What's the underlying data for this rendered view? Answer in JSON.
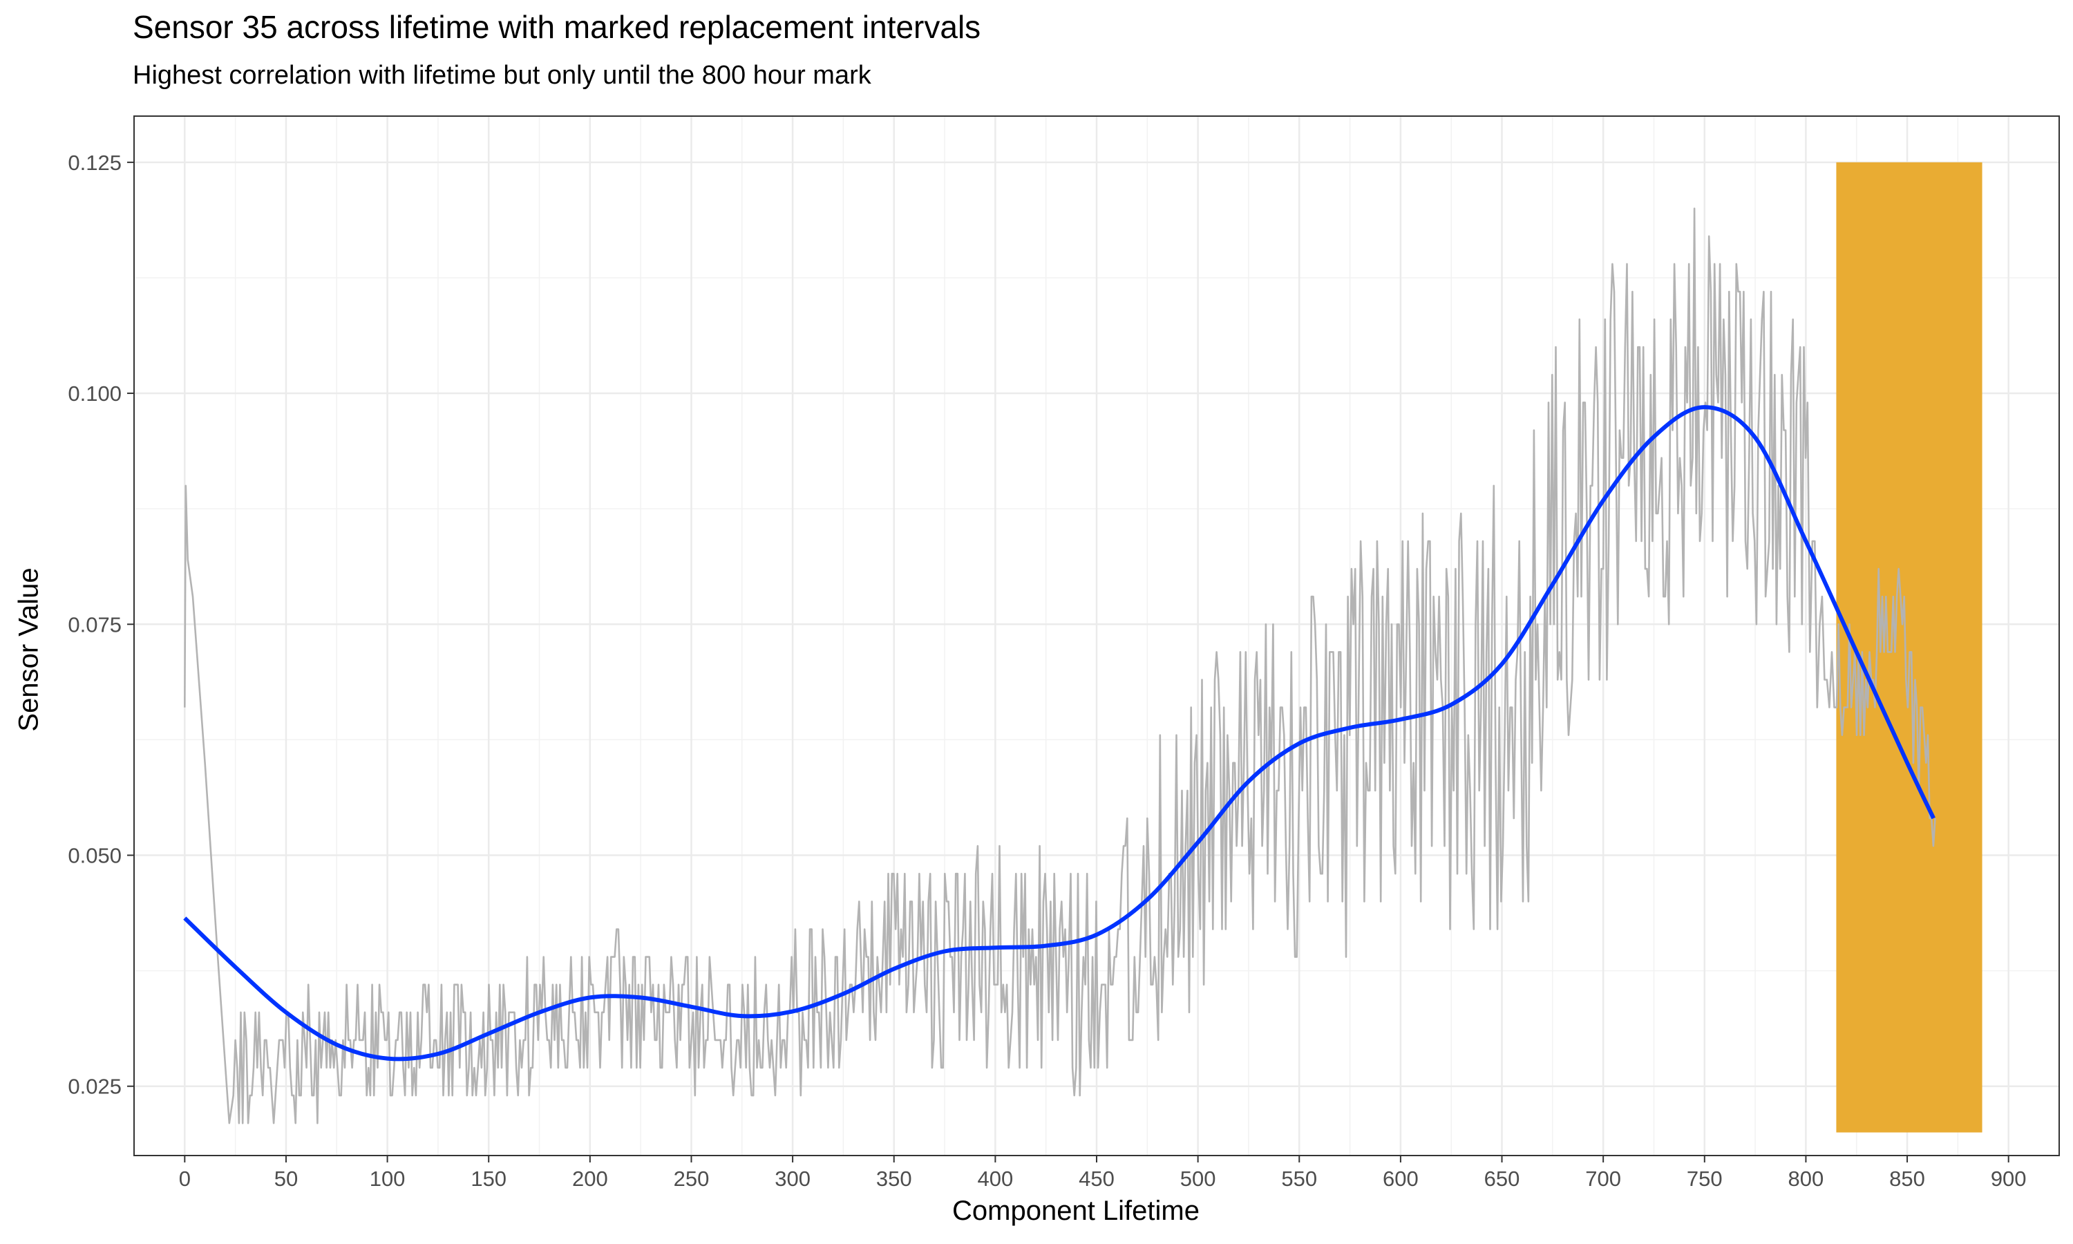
{
  "chart_data": {
    "type": "line",
    "title": "Sensor 35 across lifetime with marked replacement intervals",
    "subtitle": "Highest correlation with lifetime but only until the 800 hour mark",
    "xlabel": "Component Lifetime",
    "ylabel": "Sensor Value",
    "xlim": [
      -25,
      925
    ],
    "ylim": [
      0.0175,
      0.13
    ],
    "x_ticks": [
      0,
      50,
      100,
      150,
      200,
      250,
      300,
      350,
      400,
      450,
      500,
      550,
      600,
      650,
      700,
      750,
      800,
      850,
      900
    ],
    "y_ticks": [
      0.025,
      0.05,
      0.075,
      0.1,
      0.125
    ],
    "y_tick_labels": [
      "0.025",
      "0.050",
      "0.075",
      "0.100",
      "0.125"
    ],
    "grid": true,
    "legend": "none",
    "series": [
      {
        "kind": "raw-line",
        "color": "#b3b3b3",
        "anchors": [
          [
            0,
            0.066
          ],
          [
            1,
            0.09
          ],
          [
            2,
            0.082
          ],
          [
            8,
            0.07
          ],
          [
            16,
            0.04
          ],
          [
            22,
            0.022
          ],
          [
            30,
            0.028
          ],
          [
            50,
            0.028
          ],
          [
            75,
            0.029
          ],
          [
            100,
            0.029
          ],
          [
            125,
            0.029
          ],
          [
            150,
            0.03
          ],
          [
            175,
            0.032
          ],
          [
            200,
            0.034
          ],
          [
            225,
            0.033
          ],
          [
            250,
            0.032
          ],
          [
            275,
            0.032
          ],
          [
            300,
            0.033
          ],
          [
            325,
            0.035
          ],
          [
            350,
            0.038
          ],
          [
            375,
            0.039
          ],
          [
            400,
            0.039
          ],
          [
            425,
            0.038
          ],
          [
            445,
            0.036
          ],
          [
            460,
            0.04
          ],
          [
            480,
            0.046
          ],
          [
            500,
            0.052
          ],
          [
            525,
            0.057
          ],
          [
            550,
            0.059
          ],
          [
            575,
            0.061
          ],
          [
            600,
            0.064
          ],
          [
            625,
            0.065
          ],
          [
            650,
            0.066
          ],
          [
            660,
            0.068
          ],
          [
            680,
            0.083
          ],
          [
            700,
            0.092
          ],
          [
            725,
            0.098
          ],
          [
            750,
            0.098
          ],
          [
            770,
            0.094
          ],
          [
            790,
            0.09
          ],
          [
            800,
            0.092
          ],
          [
            805,
            0.072
          ],
          [
            815,
            0.07
          ],
          [
            825,
            0.068
          ],
          [
            835,
            0.073
          ],
          [
            845,
            0.078
          ],
          [
            855,
            0.063
          ],
          [
            864,
            0.057
          ]
        ],
        "spread": [
          [
            0,
            0.0
          ],
          [
            25,
            0.004
          ],
          [
            100,
            0.004
          ],
          [
            200,
            0.005
          ],
          [
            300,
            0.005
          ],
          [
            350,
            0.007
          ],
          [
            440,
            0.008
          ],
          [
            480,
            0.011
          ],
          [
            560,
            0.013
          ],
          [
            660,
            0.016
          ],
          [
            700,
            0.015
          ],
          [
            760,
            0.013
          ],
          [
            790,
            0.012
          ],
          [
            800,
            0.011
          ],
          [
            815,
            0.004
          ],
          [
            864,
            0.004
          ]
        ]
      },
      {
        "kind": "smooth",
        "color": "#0033ff",
        "x": [
          0,
          25,
          50,
          75,
          100,
          125,
          150,
          175,
          200,
          225,
          250,
          275,
          300,
          325,
          350,
          375,
          400,
          425,
          450,
          475,
          500,
          525,
          550,
          575,
          600,
          625,
          650,
          675,
          700,
          725,
          750,
          775,
          800,
          825,
          850,
          863
        ],
        "y": [
          0.0432,
          0.0379,
          0.033,
          0.0295,
          0.028,
          0.0285,
          0.0307,
          0.033,
          0.0346,
          0.0346,
          0.0336,
          0.0326,
          0.0331,
          0.035,
          0.0377,
          0.0396,
          0.04,
          0.0402,
          0.0414,
          0.0452,
          0.0514,
          0.058,
          0.0621,
          0.0638,
          0.0647,
          0.0663,
          0.0707,
          0.0793,
          0.0884,
          0.0953,
          0.0985,
          0.0952,
          0.084,
          0.072,
          0.06,
          0.054
        ]
      }
    ],
    "highlight": {
      "label": "replacement interval",
      "x0": 815,
      "x1": 887,
      "y0": 0.02,
      "y1": 0.125,
      "color": "#e9ac33"
    }
  }
}
